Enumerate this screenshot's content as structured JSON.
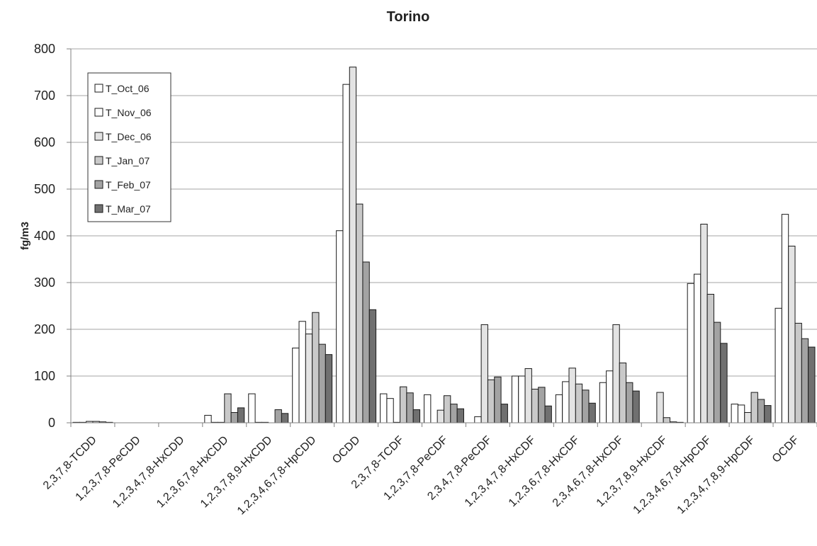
{
  "chart_data": {
    "type": "bar",
    "title": "Torino",
    "ylabel": "fg/m3",
    "xlabel": "",
    "ylim": [
      0,
      800
    ],
    "yticks": [
      "0",
      "100",
      "200",
      "300",
      "400",
      "500",
      "600",
      "700",
      "800"
    ],
    "grid": "horizontal",
    "legend_position": "top-left",
    "categories": [
      "2,3,7,8-TCDD",
      "1,2,3,7,8-PeCDD",
      "1,2,3,4,7,8-HxCDD",
      "1,2,3,6,7,8-HxCDD",
      "1,2,3,7,8,9-HxCDD",
      "1,2,3,4,6,7,8-HpCDD",
      "OCDD",
      "2,3,7,8-TCDF",
      "1,2,3,7,8-PeCDF",
      "2,3,4,7,8-PeCDF",
      "1,2,3,4,7,8-HxCDF",
      "1,2,3,6,7,8-HxCDF",
      "2,3,4,6,7,8-HxCDF",
      "1,2,3,7,8,9-HxCDF",
      "1,2,3,4,6,7,8-HpCDF",
      "1,2,3,4,7,8,9-HpCDF",
      "OCDF"
    ],
    "series": [
      {
        "name": "T_Oct_06",
        "color": "#ffffff",
        "values": [
          1,
          0,
          0,
          16,
          62,
          160,
          411,
          62,
          60,
          0,
          100,
          60,
          86,
          0,
          298,
          40,
          245
        ]
      },
      {
        "name": "T_Nov_06",
        "color": "#ffffff",
        "values": [
          1,
          0,
          0,
          1,
          1,
          217,
          724,
          52,
          0,
          13,
          100,
          88,
          111,
          0,
          318,
          38,
          446
        ]
      },
      {
        "name": "T_Dec_06",
        "color": "#e3e3e3",
        "values": [
          3,
          0,
          0,
          1,
          1,
          190,
          761,
          1,
          27,
          210,
          116,
          117,
          210,
          65,
          425,
          22,
          378
        ]
      },
      {
        "name": "T_Jan_07",
        "color": "#c9c9c9",
        "values": [
          3,
          0,
          0,
          62,
          0,
          236,
          468,
          77,
          58,
          92,
          72,
          83,
          128,
          11,
          275,
          65,
          213
        ]
      },
      {
        "name": "T_Feb_07",
        "color": "#a3a3a3",
        "values": [
          2,
          0,
          0,
          22,
          28,
          168,
          344,
          64,
          40,
          98,
          76,
          70,
          86,
          2,
          215,
          50,
          180
        ]
      },
      {
        "name": "T_Mar_07",
        "color": "#707070",
        "values": [
          1,
          0,
          0,
          32,
          20,
          146,
          242,
          28,
          30,
          40,
          36,
          42,
          68,
          1,
          170,
          37,
          162
        ]
      }
    ]
  }
}
